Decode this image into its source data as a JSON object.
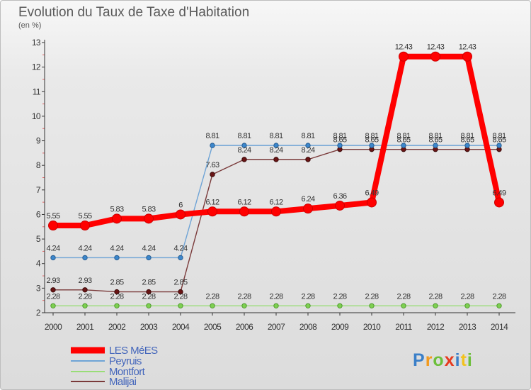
{
  "chart_data": {
    "type": "line",
    "title": "Evolution du Taux de Taxe d'Habitation",
    "subtitle": "(en %)",
    "xlabel": "",
    "ylabel": "",
    "categories": [
      "2000",
      "2001",
      "2002",
      "2003",
      "2004",
      "2005",
      "2006",
      "2007",
      "2008",
      "2009",
      "2010",
      "2011",
      "2012",
      "2013",
      "2014"
    ],
    "ylim": [
      2,
      13
    ],
    "yticks": [
      2,
      3,
      4,
      5,
      6,
      7,
      8,
      9,
      10,
      11,
      12,
      13
    ],
    "legend_position": "bottom-left",
    "series": [
      {
        "name": "LES MéES",
        "color": "#ff0000",
        "labels_shown": true,
        "values": [
          5.55,
          5.55,
          5.83,
          5.83,
          6,
          6.12,
          6.12,
          6.12,
          6.24,
          6.36,
          6.49,
          12.43,
          12.43,
          12.43,
          6.49
        ],
        "labels": [
          "5.55",
          "5.55",
          "5.83",
          "5.83",
          "6",
          "6.12",
          "6.12",
          "6.12",
          "6.24",
          "6.36",
          "6.49",
          "12.43",
          "12.43",
          "12.43",
          "6.49"
        ]
      },
      {
        "name": "Peyruis",
        "color": "#6fa4d6",
        "labels_shown": true,
        "values": [
          4.24,
          4.24,
          4.24,
          4.24,
          4.24,
          8.81,
          8.81,
          8.81,
          8.81,
          8.81,
          8.81,
          8.81,
          8.81,
          8.81,
          8.81
        ],
        "labels": [
          "4.24",
          "4.24",
          "4.24",
          "4.24",
          "4.24",
          "8.81",
          "8.81",
          "8.81",
          "8.81",
          "8.81",
          "8.81",
          "8.81",
          "8.81",
          "8.81",
          "8.81"
        ]
      },
      {
        "name": "Montfort",
        "color": "#99dd77",
        "labels_shown": true,
        "values": [
          2.28,
          2.28,
          2.28,
          2.28,
          2.28,
          2.28,
          2.28,
          2.28,
          2.28,
          2.28,
          2.28,
          2.28,
          2.28,
          2.28,
          2.28
        ],
        "labels": [
          "2.28",
          "2.28",
          "2.28",
          "2.28",
          "2.28",
          "2.28",
          "2.28",
          "2.28",
          "2.28",
          "2.28",
          "2.28",
          "2.28",
          "2.28",
          "2.28",
          "2.28"
        ]
      },
      {
        "name": "Malijai",
        "color": "#7a3a3a",
        "labels_shown": true,
        "values": [
          2.93,
          2.93,
          2.85,
          2.85,
          2.85,
          7.63,
          8.24,
          8.24,
          8.24,
          8.65,
          8.65,
          8.65,
          8.65,
          8.65,
          8.65
        ],
        "labels": [
          "2.93",
          "2.93",
          "2.85",
          "2.85",
          "2.85",
          "7.63",
          "8.24",
          "8.24",
          "8.24",
          "8.65",
          "8.65",
          "8.65",
          "8.65",
          "8.65",
          "8.65"
        ]
      }
    ]
  },
  "logo": {
    "text": "Proxiti"
  }
}
